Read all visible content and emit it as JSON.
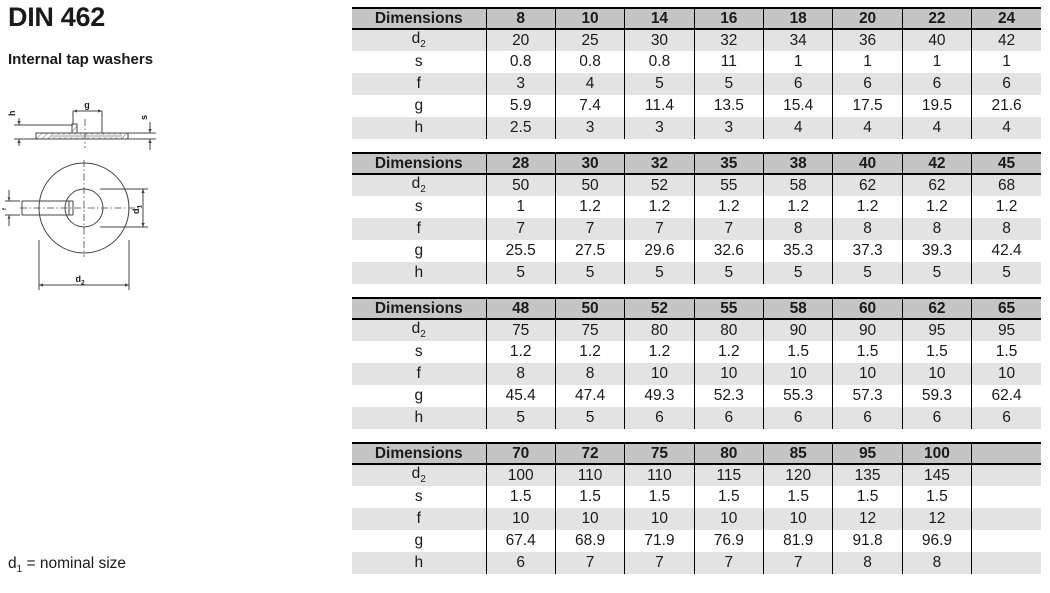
{
  "page": {
    "title": "DIN 462",
    "subtitle": "Internal tap washers",
    "footnote": {
      "base": "d",
      "sub": "1",
      "rest": " = nominal size"
    }
  },
  "drawing": {
    "labels": {
      "g": "g",
      "h": "h",
      "s": "s",
      "f": "f",
      "d": "d",
      "d1_sub": "1",
      "d2_sub": "2"
    }
  },
  "colors": {
    "header_bg": "#c5c5c5",
    "band_bg": "#e3e3e3",
    "table_border": "#000000",
    "text": "#1a1a1a",
    "drawing_line": "#444444"
  },
  "tables": [
    {
      "header_label": "Dimensions",
      "sizes": [
        "8",
        "10",
        "14",
        "16",
        "18",
        "20",
        "22",
        "24"
      ],
      "rows": [
        {
          "label": "d",
          "sub": "2",
          "values": [
            "20",
            "25",
            "30",
            "32",
            "34",
            "36",
            "40",
            "42"
          ]
        },
        {
          "label": "s",
          "sub": "",
          "values": [
            "0.8",
            "0.8",
            "0.8",
            "11",
            "1",
            "1",
            "1",
            "1"
          ]
        },
        {
          "label": "f",
          "sub": "",
          "values": [
            "3",
            "4",
            "5",
            "5",
            "6",
            "6",
            "6",
            "6"
          ]
        },
        {
          "label": "g",
          "sub": "",
          "values": [
            "5.9",
            "7.4",
            "11.4",
            "13.5",
            "15.4",
            "17.5",
            "19.5",
            "21.6"
          ]
        },
        {
          "label": "h",
          "sub": "",
          "values": [
            "2.5",
            "3",
            "3",
            "3",
            "4",
            "4",
            "4",
            "4"
          ]
        }
      ]
    },
    {
      "header_label": "Dimensions",
      "sizes": [
        "28",
        "30",
        "32",
        "35",
        "38",
        "40",
        "42",
        "45"
      ],
      "rows": [
        {
          "label": "d",
          "sub": "2",
          "values": [
            "50",
            "50",
            "52",
            "55",
            "58",
            "62",
            "62",
            "68"
          ]
        },
        {
          "label": "s",
          "sub": "",
          "values": [
            "1",
            "1.2",
            "1.2",
            "1.2",
            "1.2",
            "1.2",
            "1.2",
            "1.2"
          ]
        },
        {
          "label": "f",
          "sub": "",
          "values": [
            "7",
            "7",
            "7",
            "7",
            "8",
            "8",
            "8",
            "8"
          ]
        },
        {
          "label": "g",
          "sub": "",
          "values": [
            "25.5",
            "27.5",
            "29.6",
            "32.6",
            "35.3",
            "37.3",
            "39.3",
            "42.4"
          ]
        },
        {
          "label": "h",
          "sub": "",
          "values": [
            "5",
            "5",
            "5",
            "5",
            "5",
            "5",
            "5",
            "5"
          ]
        }
      ]
    },
    {
      "header_label": "Dimensions",
      "sizes": [
        "48",
        "50",
        "52",
        "55",
        "58",
        "60",
        "62",
        "65"
      ],
      "rows": [
        {
          "label": "d",
          "sub": "2",
          "values": [
            "75",
            "75",
            "80",
            "80",
            "90",
            "90",
            "95",
            "95"
          ]
        },
        {
          "label": "s",
          "sub": "",
          "values": [
            "1.2",
            "1.2",
            "1.2",
            "1.2",
            "1.5",
            "1.5",
            "1.5",
            "1.5"
          ]
        },
        {
          "label": "f",
          "sub": "",
          "values": [
            "8",
            "8",
            "10",
            "10",
            "10",
            "10",
            "10",
            "10"
          ]
        },
        {
          "label": "g",
          "sub": "",
          "values": [
            "45.4",
            "47.4",
            "49.3",
            "52.3",
            "55.3",
            "57.3",
            "59.3",
            "62.4"
          ]
        },
        {
          "label": "h",
          "sub": "",
          "values": [
            "5",
            "5",
            "6",
            "6",
            "6",
            "6",
            "6",
            "6"
          ]
        }
      ]
    },
    {
      "header_label": "Dimensions",
      "sizes": [
        "70",
        "72",
        "75",
        "80",
        "85",
        "95",
        "100",
        ""
      ],
      "rows": [
        {
          "label": "d",
          "sub": "2",
          "values": [
            "100",
            "110",
            "110",
            "115",
            "120",
            "135",
            "145",
            ""
          ]
        },
        {
          "label": "s",
          "sub": "",
          "values": [
            "1.5",
            "1.5",
            "1.5",
            "1.5",
            "1.5",
            "1.5",
            "1.5",
            ""
          ]
        },
        {
          "label": "f",
          "sub": "",
          "values": [
            "10",
            "10",
            "10",
            "10",
            "10",
            "12",
            "12",
            ""
          ]
        },
        {
          "label": "g",
          "sub": "",
          "values": [
            "67.4",
            "68.9",
            "71.9",
            "76.9",
            "81.9",
            "91.8",
            "96.9",
            ""
          ]
        },
        {
          "label": "h",
          "sub": "",
          "values": [
            "6",
            "7",
            "7",
            "7",
            "7",
            "8",
            "8",
            ""
          ]
        }
      ]
    }
  ]
}
